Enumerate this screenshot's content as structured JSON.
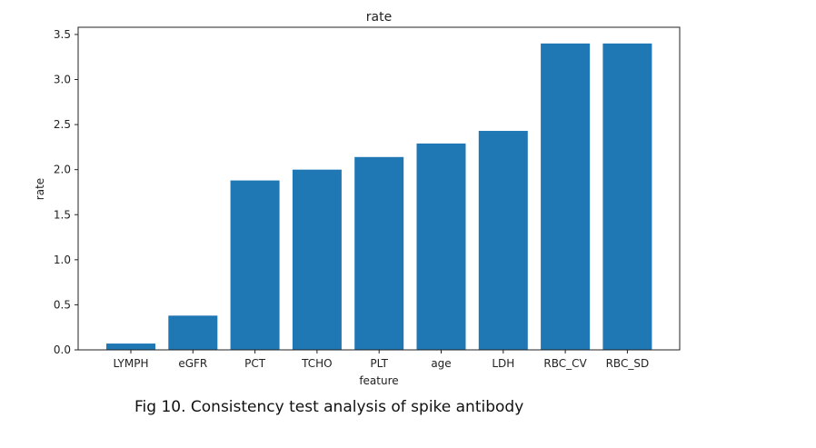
{
  "caption": "Fig 10. Consistency test analysis of spike antibody",
  "colors": {
    "bar": "#1f77b4",
    "axis": "#222222"
  },
  "chart_data": {
    "type": "bar",
    "title": "rate",
    "xlabel": "feature",
    "ylabel": "rate",
    "categories": [
      "LYMPH",
      "eGFR",
      "PCT",
      "TCHO",
      "PLT",
      "age",
      "LDH",
      "RBC_CV",
      "RBC_SD"
    ],
    "values": [
      0.07,
      0.38,
      1.88,
      2.0,
      2.14,
      2.29,
      2.43,
      3.4,
      3.4
    ],
    "ylim": [
      0,
      3.58
    ],
    "yticks": [
      "0.0",
      "0.5",
      "1.0",
      "1.5",
      "2.0",
      "2.5",
      "3.0",
      "3.5"
    ],
    "grid": false,
    "legend": "none"
  }
}
